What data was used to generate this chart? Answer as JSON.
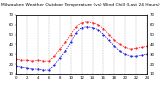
{
  "title": "Milwaukee Weather Outdoor Temperature (vs) Wind Chill (Last 24 Hours)",
  "bg_color": "#ffffff",
  "grid_color": "#888888",
  "temp_color": "#ff0000",
  "windchill_color": "#0000dd",
  "hours": [
    0,
    1,
    2,
    3,
    4,
    5,
    6,
    7,
    8,
    9,
    10,
    11,
    12,
    13,
    14,
    15,
    16,
    17,
    18,
    19,
    20,
    21,
    22,
    23,
    24
  ],
  "temp": [
    25,
    24,
    24,
    23,
    24,
    23,
    23,
    28,
    35,
    42,
    50,
    58,
    62,
    63,
    62,
    60,
    56,
    50,
    44,
    40,
    37,
    35,
    36,
    37,
    38
  ],
  "windchill": [
    18,
    17,
    16,
    15,
    15,
    14,
    14,
    19,
    26,
    33,
    42,
    52,
    57,
    58,
    57,
    55,
    50,
    44,
    38,
    33,
    30,
    28,
    28,
    29,
    30
  ],
  "ylim": [
    10,
    70
  ],
  "yticks": [
    10,
    20,
    30,
    40,
    50,
    60,
    70
  ],
  "xlim": [
    0,
    24
  ],
  "xtick_fontsize": 2.8,
  "ytick_fontsize": 2.8,
  "title_fontsize": 3.2,
  "line_width": 0.5,
  "marker_size": 1.0,
  "vline_every": 2
}
